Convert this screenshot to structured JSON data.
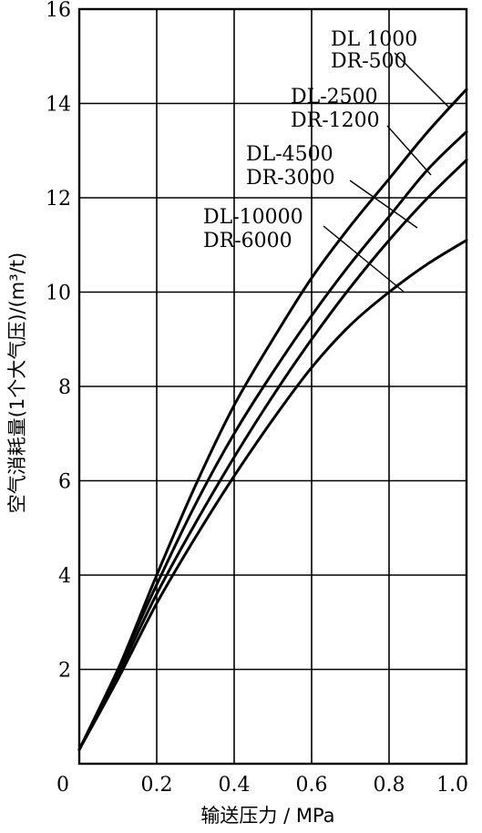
{
  "chart_data": {
    "type": "line",
    "xlabel": "输送压力 / MPa",
    "ylabel": "空气消耗量(1个大气压)/(m³/t)",
    "xlim": [
      0,
      1.0
    ],
    "ylim": [
      0,
      16
    ],
    "grid": true,
    "x_ticks": [
      "0",
      "0.2",
      "0.4",
      "0.6",
      "0.8",
      "1.0"
    ],
    "y_ticks": [
      "2",
      "4",
      "6",
      "8",
      "10",
      "12",
      "14",
      "16"
    ],
    "series": [
      {
        "name": "DL  1000 DR-500",
        "label_lines": [
          "DL  1000",
          "DR-500"
        ],
        "x": [
          0.0,
          0.1,
          0.2,
          0.3,
          0.4,
          0.5,
          0.6,
          0.7,
          0.8,
          0.9,
          1.0
        ],
        "y": [
          0.3,
          2.0,
          4.0,
          5.9,
          7.6,
          9.0,
          10.3,
          11.4,
          12.4,
          13.4,
          14.3
        ]
      },
      {
        "name": "DL-2500 DR-1200",
        "label_lines": [
          "DL-2500",
          "DR-1200"
        ],
        "x": [
          0.0,
          0.1,
          0.2,
          0.3,
          0.4,
          0.5,
          0.6,
          0.7,
          0.8,
          0.9,
          1.0
        ],
        "y": [
          0.3,
          2.0,
          3.8,
          5.5,
          7.0,
          8.3,
          9.5,
          10.6,
          11.6,
          12.6,
          13.4
        ]
      },
      {
        "name": "DL-4500 DR-3000",
        "label_lines": [
          "DL-4500",
          "DR-3000"
        ],
        "x": [
          0.0,
          0.1,
          0.2,
          0.3,
          0.4,
          0.5,
          0.6,
          0.7,
          0.8,
          0.9,
          1.0
        ],
        "y": [
          0.3,
          1.9,
          3.6,
          5.1,
          6.5,
          7.8,
          9.0,
          10.1,
          11.1,
          12.0,
          12.8
        ]
      },
      {
        "name": "DL-10000 DR-6000",
        "label_lines": [
          "DL-10000",
          "DR-6000"
        ],
        "x": [
          0.0,
          0.1,
          0.2,
          0.3,
          0.4,
          0.5,
          0.6,
          0.7,
          0.8,
          0.9,
          1.0
        ],
        "y": [
          0.3,
          1.8,
          3.4,
          4.8,
          6.1,
          7.3,
          8.4,
          9.3,
          10.0,
          10.6,
          11.1
        ]
      }
    ]
  }
}
